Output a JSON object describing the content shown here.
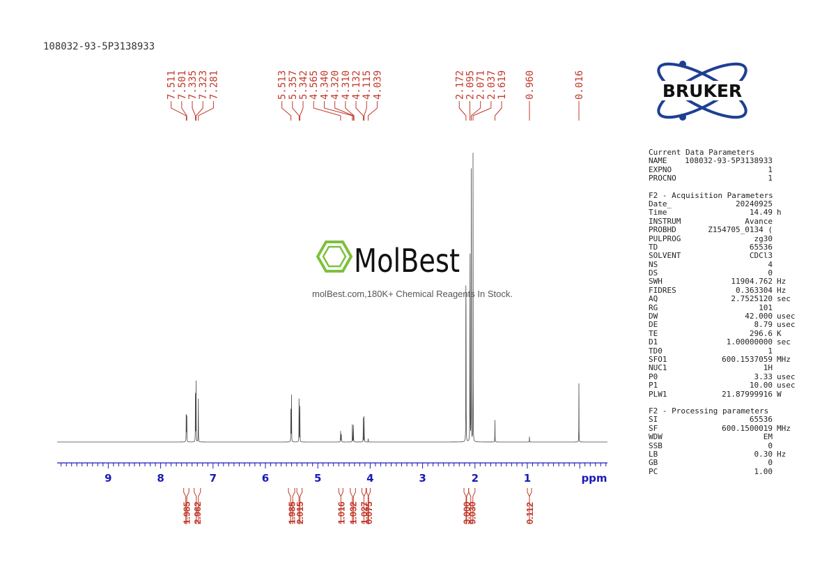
{
  "sample_id": "108032-93-5P3138933",
  "watermark": {
    "brand": "MolBest",
    "tagline": "molBest.com,180K+ Chemical Reagents In Stock."
  },
  "logo": {
    "text": "BRUKER"
  },
  "colors": {
    "spectrum": "#444444",
    "peak_labels": "#c0392b",
    "axis": "#1a1ab8",
    "integrals": "#c0392b",
    "watermark_green": "#7dc13c"
  },
  "chart_data": {
    "type": "line",
    "title": "",
    "xlabel": "ppm",
    "ylabel": "",
    "xlim": [
      10.0,
      -0.5
    ],
    "x_ticks": [
      9,
      8,
      7,
      6,
      5,
      4,
      3,
      2,
      1
    ],
    "peak_labels": [
      "7.511",
      "7.501",
      "7.335",
      "7.323",
      "7.281",
      "5.513",
      "5.357",
      "5.342",
      "4.565",
      "4.340",
      "4.320",
      "4.310",
      "4.132",
      "4.115",
      "4.039",
      "2.172",
      "2.095",
      "2.071",
      "2.037",
      "1.619",
      "0.960",
      "0.016"
    ],
    "peaks": [
      {
        "x": 7.511,
        "h": 0.18
      },
      {
        "x": 7.501,
        "h": 0.17
      },
      {
        "x": 7.335,
        "h": 0.29
      },
      {
        "x": 7.323,
        "h": 0.2
      },
      {
        "x": 7.281,
        "h": 0.21
      },
      {
        "x": 5.513,
        "h": 0.22
      },
      {
        "x": 5.501,
        "h": 0.16
      },
      {
        "x": 5.357,
        "h": 0.25
      },
      {
        "x": 5.342,
        "h": 0.12
      },
      {
        "x": 4.565,
        "h": 0.055
      },
      {
        "x": 4.552,
        "h": 0.045
      },
      {
        "x": 4.34,
        "h": 0.085
      },
      {
        "x": 4.32,
        "h": 0.085
      },
      {
        "x": 4.132,
        "h": 0.085
      },
      {
        "x": 4.115,
        "h": 0.085
      },
      {
        "x": 4.039,
        "h": 0.012
      },
      {
        "x": 2.172,
        "h": 1.0
      },
      {
        "x": 2.095,
        "h": 1.0
      },
      {
        "x": 2.071,
        "h": 1.0
      },
      {
        "x": 2.037,
        "h": 0.98
      },
      {
        "x": 1.619,
        "h": 0.085
      },
      {
        "x": 0.96,
        "h": 0.018
      },
      {
        "x": 0.016,
        "h": 0.195
      }
    ],
    "integrals": [
      {
        "from": 7.56,
        "to": 7.46,
        "value": "1.985"
      },
      {
        "from": 7.36,
        "to": 7.24,
        "value": "2.962"
      },
      {
        "from": 5.56,
        "to": 5.44,
        "value": "1.985"
      },
      {
        "from": 5.4,
        "to": 5.3,
        "value": "2.015"
      },
      {
        "from": 4.6,
        "to": 4.52,
        "value": "1.016"
      },
      {
        "from": 4.38,
        "to": 4.28,
        "value": "1.032"
      },
      {
        "from": 4.16,
        "to": 4.08,
        "value": "1.027"
      },
      {
        "from": 4.07,
        "to": 4.0,
        "value": "0.075"
      },
      {
        "from": 2.21,
        "to": 2.12,
        "value": "3.000"
      },
      {
        "from": 2.12,
        "to": 2.0,
        "value": "9.030"
      },
      {
        "from": 1.0,
        "to": 0.92,
        "value": "0.112"
      }
    ]
  },
  "parameters": [
    {
      "title": "Current Data Parameters",
      "rows": [
        {
          "k": "NAME",
          "v": "108032-93-5P3138933",
          "u": ""
        },
        {
          "k": "EXPNO",
          "v": "1",
          "u": ""
        },
        {
          "k": "PROCNO",
          "v": "1",
          "u": ""
        }
      ]
    },
    {
      "title": "F2 - Acquisition Parameters",
      "rows": [
        {
          "k": "Date_",
          "v": "20240925",
          "u": ""
        },
        {
          "k": "Time",
          "v": "14.49",
          "u": "h"
        },
        {
          "k": "INSTRUM",
          "v": "Avance",
          "u": ""
        },
        {
          "k": "PROBHD",
          "v": "Z154705_0134 (",
          "u": ""
        },
        {
          "k": "PULPROG",
          "v": "zg30",
          "u": ""
        },
        {
          "k": "TD",
          "v": "65536",
          "u": ""
        },
        {
          "k": "SOLVENT",
          "v": "CDCl3",
          "u": ""
        },
        {
          "k": "NS",
          "v": "4",
          "u": ""
        },
        {
          "k": "DS",
          "v": "0",
          "u": ""
        },
        {
          "k": "SWH",
          "v": "11904.762",
          "u": "Hz"
        },
        {
          "k": "FIDRES",
          "v": "0.363304",
          "u": "Hz"
        },
        {
          "k": "AQ",
          "v": "2.7525120",
          "u": "sec"
        },
        {
          "k": "RG",
          "v": "101",
          "u": ""
        },
        {
          "k": "DW",
          "v": "42.000",
          "u": "usec"
        },
        {
          "k": "DE",
          "v": "8.79",
          "u": "usec"
        },
        {
          "k": "TE",
          "v": "296.6",
          "u": "K"
        },
        {
          "k": "D1",
          "v": "1.00000000",
          "u": "sec"
        },
        {
          "k": "TD0",
          "v": "1",
          "u": ""
        },
        {
          "k": "SFO1",
          "v": "600.1537059",
          "u": "MHz"
        },
        {
          "k": "NUC1",
          "v": "1H",
          "u": ""
        },
        {
          "k": "P0",
          "v": "3.33",
          "u": "usec"
        },
        {
          "k": "P1",
          "v": "10.00",
          "u": "usec"
        },
        {
          "k": "PLW1",
          "v": "21.87999916",
          "u": "W"
        }
      ]
    },
    {
      "title": "F2 - Processing parameters",
      "rows": [
        {
          "k": "SI",
          "v": "65536",
          "u": ""
        },
        {
          "k": "SF",
          "v": "600.1500019",
          "u": "MHz"
        },
        {
          "k": "WDW",
          "v": "EM",
          "u": ""
        },
        {
          "k": "SSB",
          "v": "0",
          "u": ""
        },
        {
          "k": "LB",
          "v": "0.30",
          "u": "Hz"
        },
        {
          "k": "GB",
          "v": "0",
          "u": ""
        },
        {
          "k": "PC",
          "v": "1.00",
          "u": ""
        }
      ]
    }
  ]
}
